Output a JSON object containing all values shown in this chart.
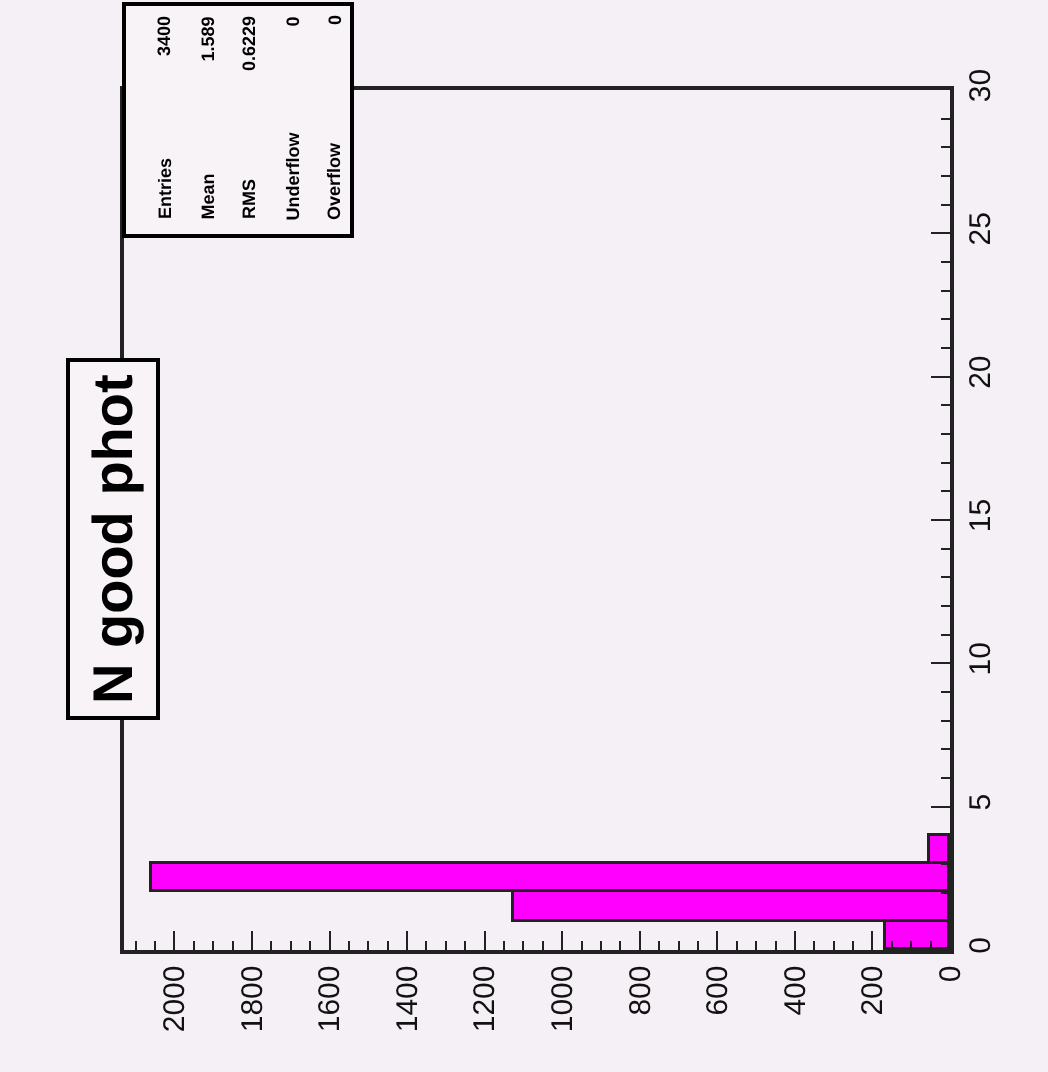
{
  "chart_data": {
    "type": "histogram",
    "orientation": "horizontal",
    "title": "N good phot",
    "bins": [
      0,
      1,
      2,
      3,
      4
    ],
    "values": [
      165,
      1125,
      2060,
      50
    ],
    "color": "#ff00ff",
    "xlim": [
      2130,
      0
    ],
    "xticks": [
      0,
      200,
      400,
      600,
      800,
      1000,
      1200,
      1400,
      1600,
      1800,
      2000
    ],
    "ylim": [
      0,
      30
    ],
    "yticks": [
      0,
      5,
      10,
      15,
      20,
      25,
      30
    ],
    "annotations": [
      "Entries",
      "3400",
      "Mean",
      "1.589",
      "RMS",
      "0.6229",
      "Underflow",
      "0",
      "Overflow",
      "0"
    ],
    "grid": false,
    "legend": false
  }
}
